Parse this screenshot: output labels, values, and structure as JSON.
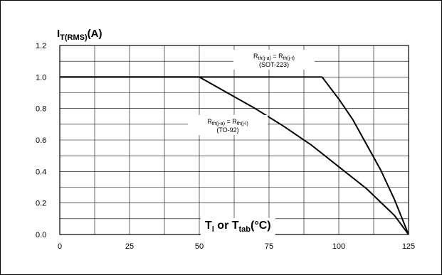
{
  "chart_data": {
    "type": "line",
    "title": {
      "main": "I",
      "sub": "T(RMS)",
      "unit": "(A)"
    },
    "xlabel": {
      "main": "T",
      "sub": "l",
      "mid": " or T",
      "sub2": "tab",
      "unit": "(°C)"
    },
    "xlim": [
      0,
      125
    ],
    "ylim": [
      0,
      1.2
    ],
    "x_ticks": [
      "0",
      "25",
      "50",
      "75",
      "100",
      "125"
    ],
    "y_ticks": [
      "0.0",
      "0.2",
      "0.4",
      "0.6",
      "0.8",
      "1.0",
      "1.2"
    ],
    "grid": true,
    "series": [
      {
        "x": [
          0,
          94,
          100,
          105,
          110,
          115,
          120,
          125
        ],
        "y": [
          1.0,
          1.0,
          0.86,
          0.73,
          0.57,
          0.41,
          0.22,
          0.0
        ]
      },
      {
        "x": [
          0,
          50,
          60,
          70,
          80,
          90,
          100,
          110,
          120,
          125
        ],
        "y": [
          1.0,
          1.0,
          0.9,
          0.8,
          0.69,
          0.57,
          0.43,
          0.29,
          0.12,
          0.0
        ]
      }
    ],
    "annotations": [
      {
        "lines": [
          {
            "R": "R",
            "s1": "th(j-a)",
            "eq": " = R",
            "s2": "th(j-t)"
          },
          {
            "text": "(SOT-223)"
          }
        ]
      },
      {
        "lines": [
          {
            "R": "R",
            "s1": "th(j-a)",
            "eq": " = R",
            "s2": "th(j-l)"
          },
          {
            "text": "(TO-92)"
          }
        ]
      }
    ]
  }
}
